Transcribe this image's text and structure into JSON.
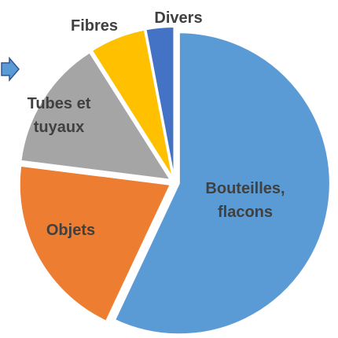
{
  "chart_data": {
    "type": "pie",
    "categories": [
      "Bouteilles, flacons",
      "Objets",
      "Tubes et tuyaux",
      "Fibres",
      "Divers"
    ],
    "values": [
      57,
      20,
      14,
      6,
      3
    ],
    "colors": [
      "#5b9bd5",
      "#ed7d31",
      "#a5a5a5",
      "#ffc000",
      "#4472c4"
    ]
  }
}
